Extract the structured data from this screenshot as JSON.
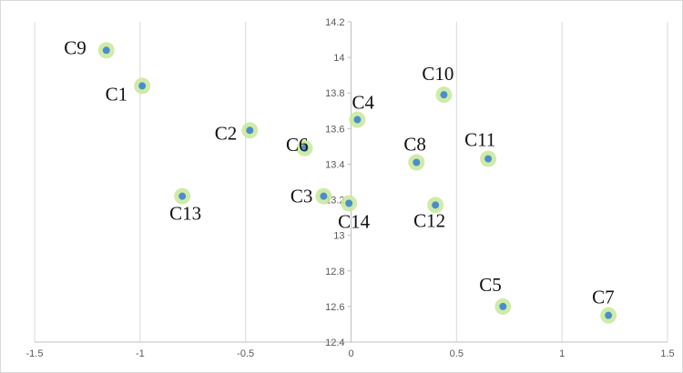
{
  "chart_data": {
    "type": "scatter",
    "title": "",
    "xlabel": "",
    "ylabel": "",
    "xlim": [
      -1.5,
      1.5
    ],
    "ylim": [
      12.4,
      14.2
    ],
    "x_ticks": [
      -1.5,
      -1,
      -0.5,
      0,
      0.5,
      1,
      1.5
    ],
    "y_ticks": [
      12.4,
      12.6,
      12.8,
      13,
      13.2,
      13.4,
      13.6,
      13.8,
      14,
      14.2
    ],
    "x_tick_labels": [
      "-1.5",
      "-1",
      "-0.5",
      "0",
      "0.5",
      "1",
      "1.5"
    ],
    "y_tick_labels": [
      "12.4",
      "12.6",
      "12.8",
      "13",
      "13.2",
      "13.4",
      "13.6",
      "13.8",
      "14",
      "14.2"
    ],
    "grid": "vertical",
    "legend": "none",
    "colors": {
      "marker": "#4a8ec9",
      "halo": "#c8e89a",
      "grid": "#d9d9d9"
    },
    "points": [
      {
        "label": "C9",
        "x": -1.16,
        "y": 14.04
      },
      {
        "label": "C1",
        "x": -0.99,
        "y": 13.84
      },
      {
        "label": "C2",
        "x": -0.48,
        "y": 13.59
      },
      {
        "label": "C6",
        "x": -0.22,
        "y": 13.49
      },
      {
        "label": "C13",
        "x": -0.8,
        "y": 13.22
      },
      {
        "label": "C3",
        "x": -0.13,
        "y": 13.22
      },
      {
        "label": "C14",
        "x": -0.01,
        "y": 13.18
      },
      {
        "label": "C4",
        "x": 0.03,
        "y": 13.65
      },
      {
        "label": "C10",
        "x": 0.44,
        "y": 13.79
      },
      {
        "label": "C8",
        "x": 0.31,
        "y": 13.41
      },
      {
        "label": "C11",
        "x": 0.65,
        "y": 13.43
      },
      {
        "label": "C12",
        "x": 0.4,
        "y": 13.17
      },
      {
        "label": "C5",
        "x": 0.72,
        "y": 12.6
      },
      {
        "label": "C7",
        "x": 1.22,
        "y": 12.55
      }
    ]
  }
}
